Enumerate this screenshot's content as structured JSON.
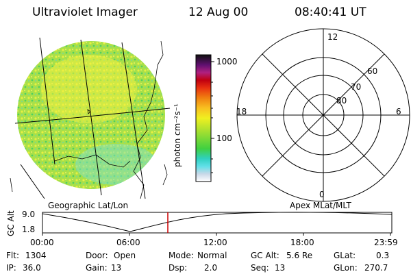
{
  "header": {
    "instrument": "Ultraviolet Imager",
    "date": "12 Aug 00",
    "time": "08:40:41 UT"
  },
  "colorbar": {
    "unit_label": "photon cm⁻²s⁻¹",
    "ticks": [
      "1000",
      "100"
    ]
  },
  "geo_panel": {
    "caption": "Geographic Lat/Lon"
  },
  "polar_panel": {
    "caption": "Apex MLat/MLT",
    "mlt_labels": {
      "top": "12",
      "left": "18",
      "right": "6",
      "bottom": "0"
    },
    "lat_labels": [
      "60",
      "70",
      "80"
    ]
  },
  "orbit_plot": {
    "ylabel": "GC Alt",
    "ytick_top": "9.0",
    "ytick_bottom": "1.8",
    "xticks": [
      "00:00",
      "06:00",
      "12:00",
      "18:00",
      "23:59"
    ]
  },
  "status": {
    "flt": {
      "label": "Flt:",
      "value": "1304"
    },
    "ip": {
      "label": "IP:",
      "value": "36.0"
    },
    "door": {
      "label": "Door:",
      "value": "Open"
    },
    "gain": {
      "label": "Gain:",
      "value": "13"
    },
    "mode": {
      "label": "Mode:",
      "value": "Normal"
    },
    "dsp": {
      "label": "Dsp:",
      "value": "2.0"
    },
    "gcalt": {
      "label": "GC Alt:",
      "value": "5.6 Re"
    },
    "seq": {
      "label": "Seq:",
      "value": "13"
    },
    "glat": {
      "label": "GLat:",
      "value": "0.3"
    },
    "glon": {
      "label": "GLon:",
      "value": "270.7"
    }
  },
  "colors": {
    "marker": "#cc0000",
    "image_base": "#a8e04a"
  }
}
